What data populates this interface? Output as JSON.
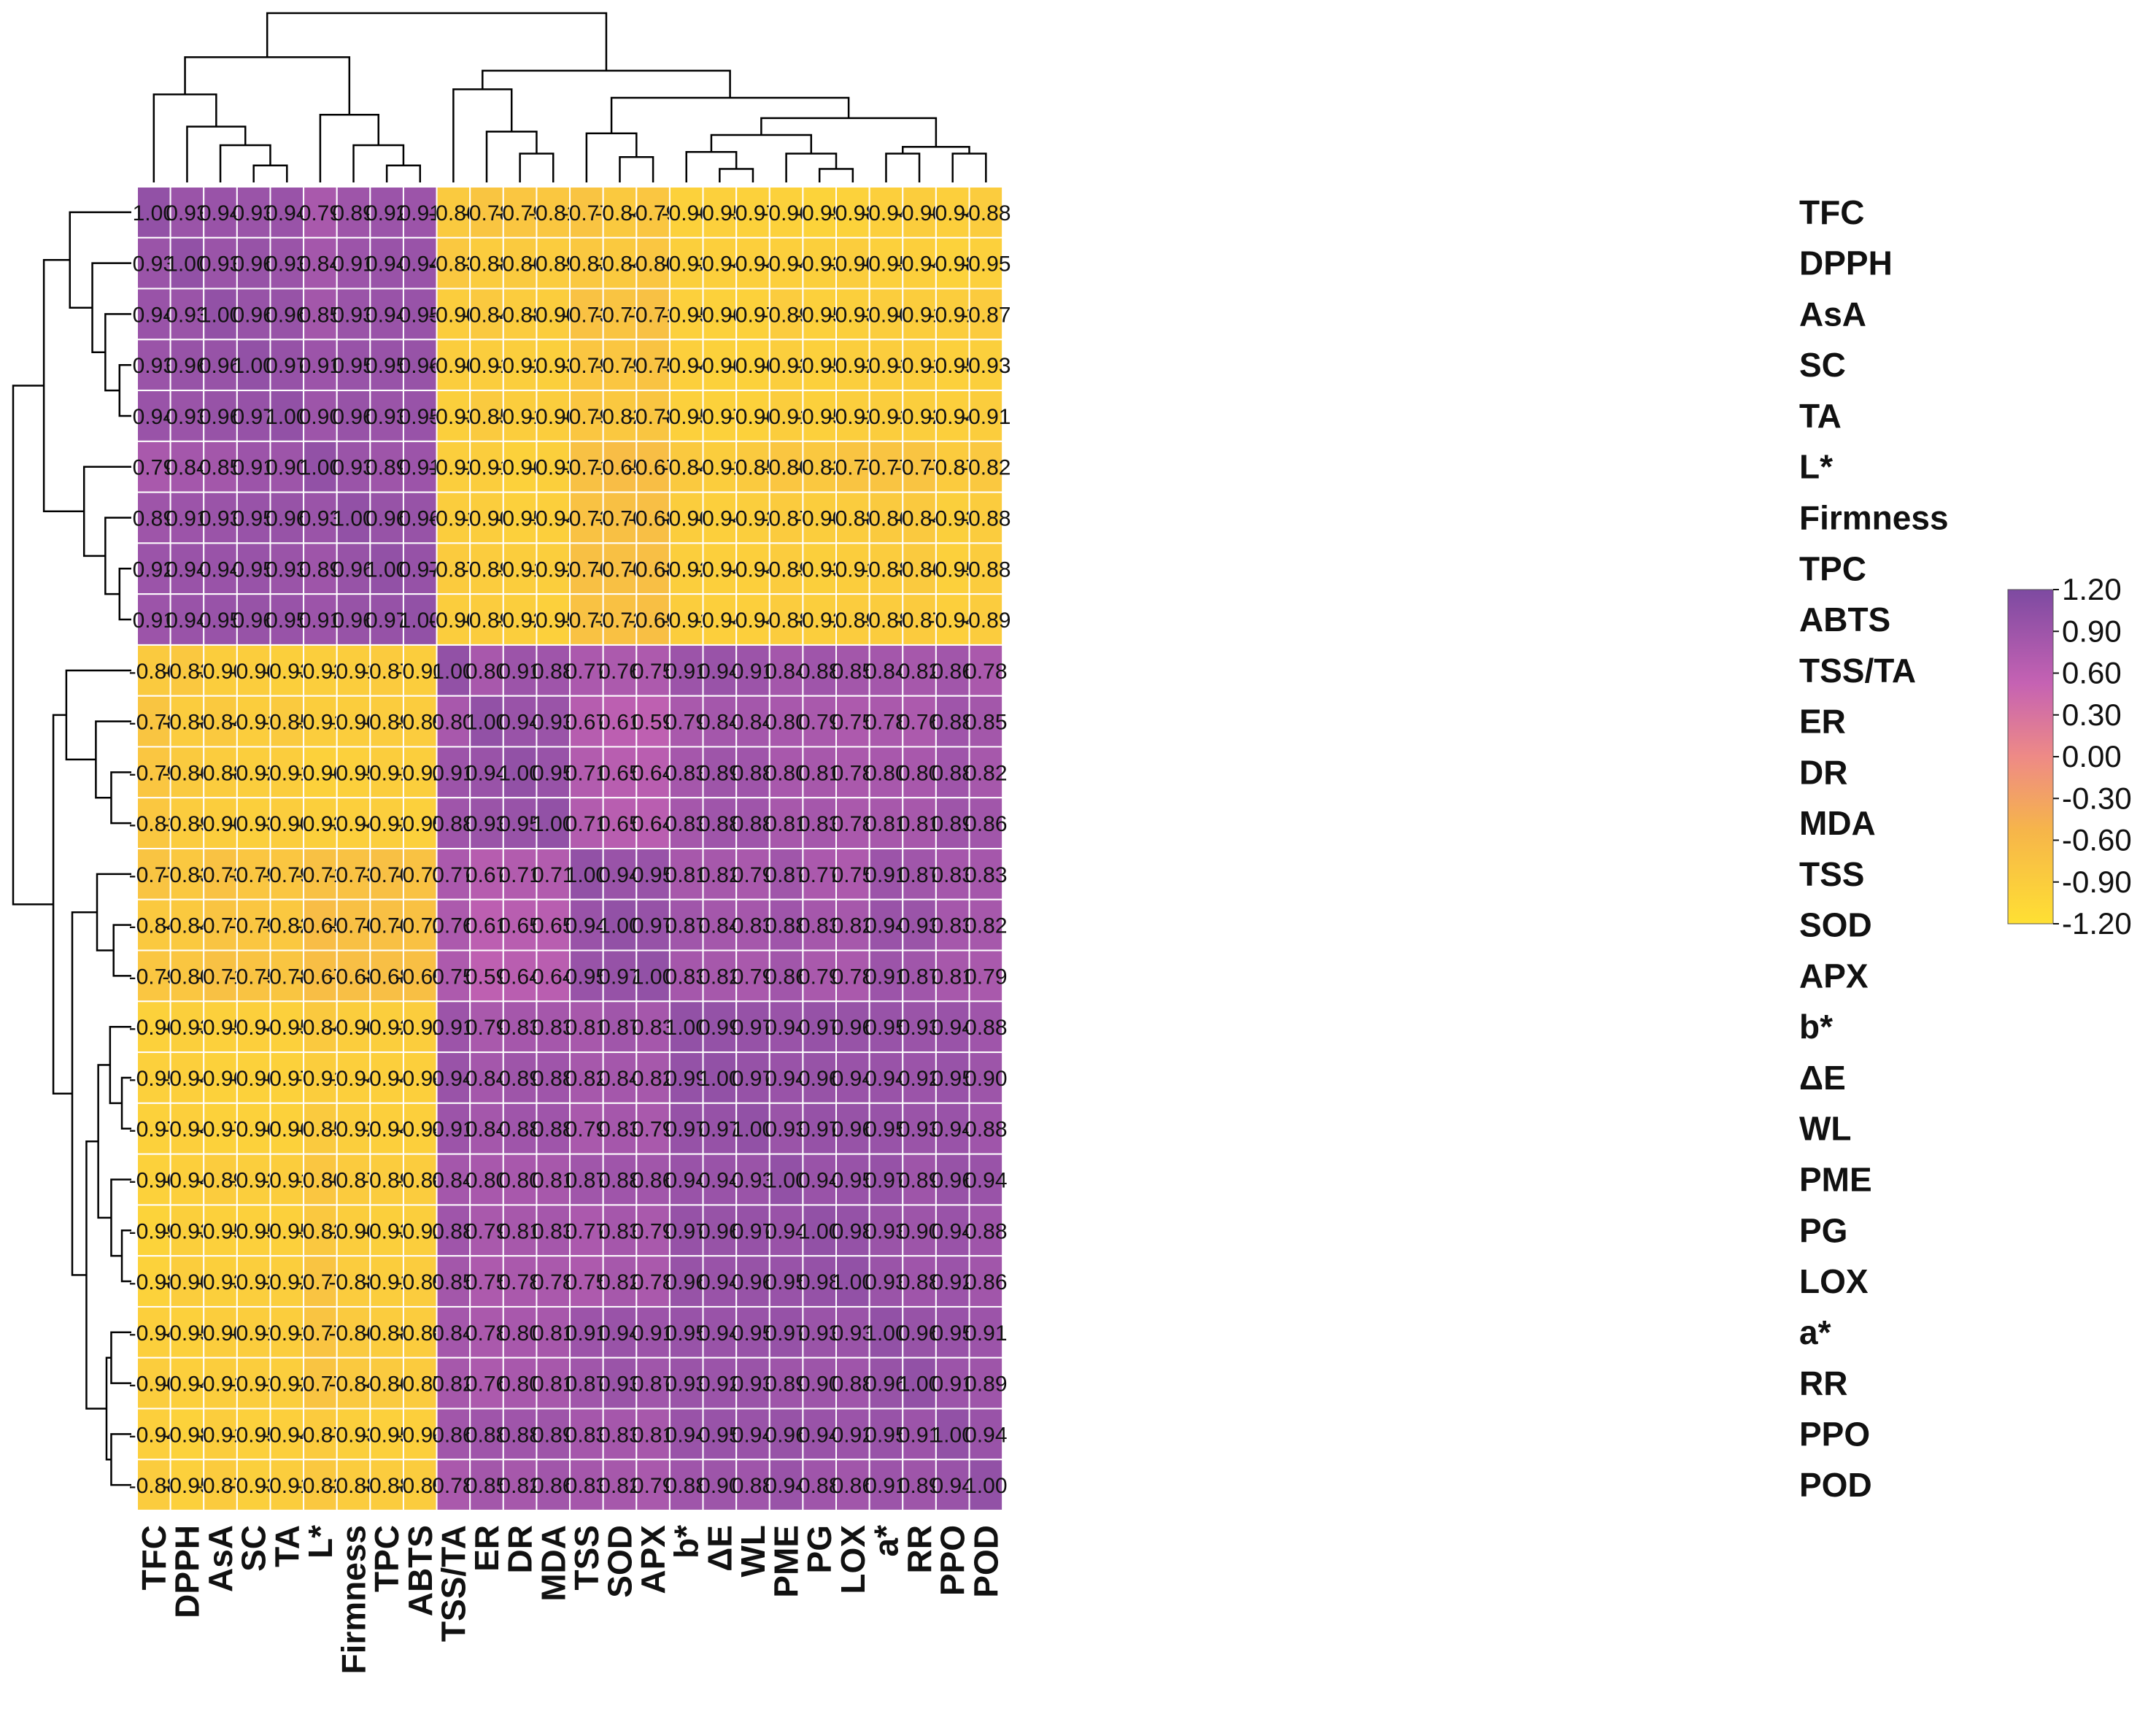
{
  "chart_data": {
    "type": "heatmap",
    "title": "",
    "variables": [
      "TFC",
      "DPPH",
      "AsA",
      "SC",
      "TA",
      "L*",
      "Firmness",
      "TPC",
      "ABTS",
      "TSS/TA",
      "ER",
      "DR",
      "MDA",
      "TSS",
      "SOD",
      "APX",
      "b*",
      "ΔE",
      "WL",
      "PME",
      "PG",
      "LOX",
      "a*",
      "RR",
      "PPO",
      "POD"
    ],
    "values": [
      [
        1.0,
        0.93,
        0.94,
        0.93,
        0.94,
        0.79,
        0.89,
        0.92,
        0.91,
        -0.86,
        -0.78,
        -0.79,
        -0.81,
        -0.77,
        -0.84,
        -0.79,
        -0.96,
        -0.95,
        -0.97,
        -0.96,
        -0.99,
        -0.98,
        -0.94,
        -0.9,
        -0.94,
        -0.88
      ],
      [
        0.93,
        1.0,
        0.93,
        0.96,
        0.93,
        0.84,
        0.91,
        0.94,
        0.94,
        -0.83,
        -0.88,
        -0.86,
        -0.89,
        -0.83,
        -0.84,
        -0.8,
        -0.93,
        -0.94,
        -0.94,
        -0.94,
        -0.93,
        -0.9,
        -0.95,
        -0.94,
        -0.98,
        -0.95
      ],
      [
        0.94,
        0.93,
        1.0,
        0.96,
        0.96,
        0.85,
        0.93,
        0.94,
        0.95,
        -0.9,
        -0.84,
        -0.88,
        -0.9,
        -0.73,
        -0.77,
        -0.71,
        -0.95,
        -0.96,
        -0.97,
        -0.89,
        -0.95,
        -0.93,
        -0.9,
        -0.91,
        -0.91,
        -0.87
      ],
      [
        0.93,
        0.96,
        0.96,
        1.0,
        0.97,
        0.91,
        0.95,
        0.95,
        0.96,
        -0.9,
        -0.91,
        -0.92,
        -0.93,
        -0.79,
        -0.79,
        -0.75,
        -0.94,
        -0.96,
        -0.96,
        -0.92,
        -0.95,
        -0.92,
        -0.91,
        -0.91,
        -0.95,
        -0.93
      ],
      [
        0.94,
        0.93,
        0.96,
        0.97,
        1.0,
        0.9,
        0.96,
        0.93,
        0.95,
        -0.93,
        -0.85,
        -0.91,
        -0.9,
        -0.79,
        -0.82,
        -0.78,
        -0.95,
        -0.97,
        -0.96,
        -0.91,
        -0.95,
        -0.92,
        -0.91,
        -0.92,
        -0.94,
        -0.91
      ],
      [
        0.79,
        0.84,
        0.85,
        0.91,
        0.9,
        1.0,
        0.93,
        0.89,
        0.91,
        -0.92,
        -0.91,
        -0.96,
        -0.93,
        -0.71,
        -0.65,
        -0.67,
        -0.84,
        -0.91,
        -0.85,
        -0.8,
        -0.82,
        -0.77,
        -0.77,
        -0.77,
        -0.87,
        -0.82
      ],
      [
        0.89,
        0.91,
        0.93,
        0.95,
        0.96,
        0.93,
        1.0,
        0.96,
        0.96,
        -0.91,
        -0.9,
        -0.95,
        -0.94,
        -0.73,
        -0.7,
        -0.68,
        -0.9,
        -0.94,
        -0.92,
        -0.87,
        -0.9,
        -0.88,
        -0.86,
        -0.84,
        -0.93,
        -0.88
      ],
      [
        0.92,
        0.94,
        0.94,
        0.95,
        0.93,
        0.89,
        0.96,
        1.0,
        0.97,
        -0.87,
        -0.89,
        -0.91,
        -0.92,
        -0.7,
        -0.7,
        -0.68,
        -0.92,
        -0.94,
        -0.94,
        -0.89,
        -0.93,
        -0.91,
        -0.88,
        -0.86,
        -0.95,
        -0.88
      ],
      [
        0.91,
        0.94,
        0.95,
        0.96,
        0.95,
        0.91,
        0.96,
        0.97,
        1.0,
        -0.9,
        -0.89,
        -0.92,
        -0.95,
        -0.73,
        -0.72,
        -0.69,
        -0.91,
        -0.94,
        -0.94,
        -0.88,
        -0.92,
        -0.89,
        -0.88,
        -0.87,
        -0.94,
        -0.89
      ],
      [
        -0.86,
        -0.83,
        -0.9,
        -0.9,
        -0.93,
        -0.92,
        -0.91,
        -0.87,
        -0.9,
        1.0,
        0.8,
        0.91,
        0.88,
        0.77,
        0.76,
        0.75,
        0.91,
        0.94,
        0.91,
        0.84,
        0.88,
        0.85,
        0.84,
        0.82,
        0.86,
        0.78
      ],
      [
        -0.78,
        -0.88,
        -0.84,
        -0.91,
        -0.85,
        -0.91,
        -0.9,
        -0.89,
        -0.89,
        0.8,
        1.0,
        0.94,
        0.93,
        0.67,
        0.61,
        0.59,
        0.79,
        0.84,
        0.84,
        0.8,
        0.79,
        0.75,
        0.78,
        0.76,
        0.88,
        0.85
      ],
      [
        -0.79,
        -0.86,
        -0.88,
        -0.92,
        -0.91,
        -0.96,
        -0.95,
        -0.91,
        -0.92,
        0.91,
        0.94,
        1.0,
        0.95,
        0.71,
        0.65,
        0.64,
        0.83,
        0.89,
        0.88,
        0.8,
        0.81,
        0.78,
        0.8,
        0.8,
        0.88,
        0.82
      ],
      [
        -0.81,
        -0.89,
        -0.9,
        -0.93,
        -0.9,
        -0.93,
        -0.94,
        -0.92,
        -0.95,
        0.88,
        0.93,
        0.95,
        1.0,
        0.71,
        0.65,
        0.64,
        0.83,
        0.88,
        0.88,
        0.81,
        0.83,
        0.78,
        0.81,
        0.81,
        0.89,
        0.86
      ],
      [
        -0.77,
        -0.83,
        -0.73,
        -0.79,
        -0.79,
        -0.71,
        -0.73,
        -0.7,
        -0.73,
        0.77,
        0.67,
        0.71,
        0.71,
        1.0,
        0.94,
        0.95,
        0.81,
        0.82,
        0.79,
        0.87,
        0.77,
        0.75,
        0.91,
        0.87,
        0.83,
        0.83
      ],
      [
        -0.84,
        -0.84,
        -0.77,
        -0.79,
        -0.82,
        -0.65,
        -0.7,
        -0.7,
        -0.72,
        0.76,
        0.61,
        0.65,
        0.65,
        0.94,
        1.0,
        0.97,
        0.87,
        0.84,
        0.83,
        0.88,
        0.83,
        0.82,
        0.94,
        0.93,
        0.83,
        0.82
      ],
      [
        -0.79,
        -0.8,
        -0.71,
        -0.75,
        -0.78,
        -0.67,
        -0.68,
        -0.68,
        -0.69,
        0.75,
        0.59,
        0.64,
        0.64,
        0.95,
        0.97,
        1.0,
        0.83,
        0.82,
        0.79,
        0.86,
        0.79,
        0.78,
        0.91,
        0.87,
        0.81,
        0.79
      ],
      [
        -0.96,
        -0.93,
        -0.95,
        -0.94,
        -0.95,
        -0.84,
        -0.9,
        -0.92,
        -0.91,
        0.91,
        0.79,
        0.83,
        0.83,
        0.81,
        0.87,
        0.83,
        1.0,
        0.99,
        0.97,
        0.94,
        0.97,
        0.96,
        0.95,
        0.93,
        0.94,
        0.88
      ],
      [
        -0.95,
        -0.94,
        -0.96,
        -0.96,
        -0.97,
        -0.91,
        -0.94,
        -0.94,
        -0.94,
        0.94,
        0.84,
        0.89,
        0.88,
        0.82,
        0.84,
        0.82,
        0.99,
        1.0,
        0.97,
        0.94,
        0.96,
        0.94,
        0.94,
        0.92,
        0.95,
        0.9
      ],
      [
        -0.97,
        -0.94,
        -0.97,
        -0.96,
        -0.96,
        -0.85,
        -0.92,
        -0.94,
        -0.94,
        0.91,
        0.84,
        0.88,
        0.88,
        0.79,
        0.83,
        0.79,
        0.97,
        0.97,
        1.0,
        0.93,
        0.97,
        0.96,
        0.95,
        0.93,
        0.94,
        0.88
      ],
      [
        -0.96,
        -0.94,
        -0.89,
        -0.92,
        -0.91,
        -0.8,
        -0.87,
        -0.89,
        -0.88,
        0.84,
        0.8,
        0.8,
        0.81,
        0.87,
        0.88,
        0.86,
        0.94,
        0.94,
        0.93,
        1.0,
        0.94,
        0.95,
        0.97,
        0.89,
        0.96,
        0.94
      ],
      [
        -0.99,
        -0.93,
        -0.95,
        -0.95,
        -0.95,
        -0.82,
        -0.9,
        -0.93,
        -0.92,
        0.88,
        0.79,
        0.81,
        0.83,
        0.77,
        0.83,
        0.79,
        0.97,
        0.96,
        0.97,
        0.94,
        1.0,
        0.98,
        0.93,
        0.9,
        0.94,
        0.88
      ],
      [
        -0.98,
        -0.9,
        -0.93,
        -0.92,
        -0.92,
        -0.77,
        -0.88,
        -0.91,
        -0.89,
        0.85,
        0.75,
        0.78,
        0.78,
        0.75,
        0.82,
        0.78,
        0.96,
        0.94,
        0.96,
        0.95,
        0.98,
        1.0,
        0.93,
        0.88,
        0.92,
        0.86
      ],
      [
        -0.94,
        -0.95,
        -0.9,
        -0.91,
        -0.91,
        -0.77,
        -0.86,
        -0.88,
        -0.88,
        0.84,
        0.78,
        0.8,
        0.81,
        0.91,
        0.94,
        0.91,
        0.95,
        0.94,
        0.95,
        0.97,
        0.93,
        0.93,
        1.0,
        0.96,
        0.95,
        0.91
      ],
      [
        -0.9,
        -0.94,
        -0.91,
        -0.91,
        -0.92,
        -0.77,
        -0.84,
        -0.86,
        -0.87,
        0.82,
        0.76,
        0.8,
        0.81,
        0.87,
        0.93,
        0.87,
        0.93,
        0.92,
        0.93,
        0.89,
        0.9,
        0.88,
        0.96,
        1.0,
        0.91,
        0.89
      ],
      [
        -0.94,
        -0.98,
        -0.91,
        -0.95,
        -0.94,
        -0.87,
        -0.93,
        -0.95,
        -0.94,
        0.86,
        0.88,
        0.88,
        0.89,
        0.83,
        0.83,
        0.81,
        0.94,
        0.95,
        0.94,
        0.96,
        0.94,
        0.92,
        0.95,
        0.91,
        1.0,
        0.94
      ],
      [
        -0.88,
        -0.95,
        -0.87,
        -0.93,
        -0.91,
        -0.82,
        -0.88,
        -0.88,
        -0.89,
        0.78,
        0.85,
        0.82,
        0.86,
        0.83,
        0.82,
        0.79,
        0.88,
        0.9,
        0.88,
        0.94,
        0.88,
        0.86,
        0.91,
        0.89,
        0.94,
        1.0
      ]
    ],
    "colorbar": {
      "range": [
        -1.2,
        1.2
      ],
      "ticks": [
        "1.20",
        "0.90",
        "0.60",
        "0.30",
        "0.00",
        "-0.30",
        "-0.60",
        "-0.90",
        "-1.20"
      ],
      "colors": [
        "#ffe033",
        "#f6b54a",
        "#ee8a86",
        "#c562b3",
        "#7d4aa1"
      ]
    },
    "colors": {
      "grid": "#ffffff",
      "dendrogram": "#000000",
      "text": "#111111"
    }
  }
}
